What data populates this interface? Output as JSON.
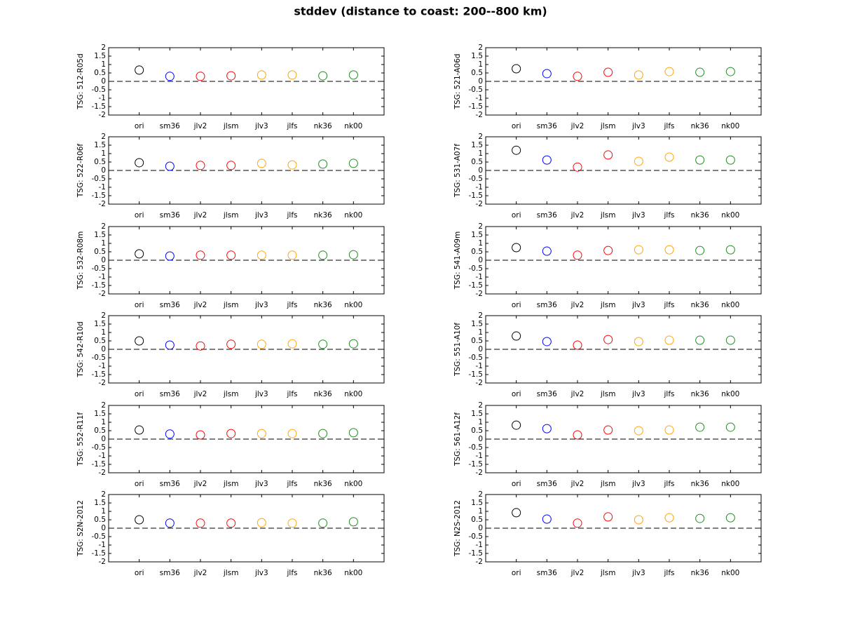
{
  "title": "stddev (distance to coast: 200--800 km)",
  "chart_data": [
    {
      "type": "scatter",
      "ylabel": "TSG: 512-R05d",
      "categories": [
        "ori",
        "sm36",
        "jlv2",
        "jlsm",
        "jlv3",
        "jlfs",
        "nk36",
        "nk00"
      ],
      "values": [
        0.67,
        0.3,
        0.3,
        0.33,
        0.38,
        0.38,
        0.33,
        0.38
      ],
      "colors": [
        "#000000",
        "#0000ff",
        "#ff0000",
        "#ff0000",
        "#ffa500",
        "#ffa500",
        "#228b22",
        "#228b22"
      ],
      "ylim": [
        -2,
        2
      ],
      "yticks": [
        -2,
        -1.5,
        -1,
        -0.5,
        0,
        0.5,
        1,
        1.5,
        2
      ],
      "hline": 0
    },
    {
      "type": "scatter",
      "ylabel": "TSG: 521-A06d",
      "categories": [
        "ori",
        "sm36",
        "jlv2",
        "jlsm",
        "jlv3",
        "jlfs",
        "nk36",
        "nk00"
      ],
      "values": [
        0.75,
        0.46,
        0.3,
        0.54,
        0.38,
        0.58,
        0.54,
        0.58
      ],
      "colors": [
        "#000000",
        "#0000ff",
        "#ff0000",
        "#ff0000",
        "#ffa500",
        "#ffa500",
        "#228b22",
        "#228b22"
      ],
      "ylim": [
        -2,
        2
      ],
      "yticks": [
        -2,
        -1.5,
        -1,
        -0.5,
        0,
        0.5,
        1,
        1.5,
        2
      ],
      "hline": 0
    },
    {
      "type": "scatter",
      "ylabel": "TSG: 522-R06f",
      "categories": [
        "ori",
        "sm36",
        "jlv2",
        "jlsm",
        "jlv3",
        "jlfs",
        "nk36",
        "nk00"
      ],
      "values": [
        0.46,
        0.25,
        0.3,
        0.3,
        0.42,
        0.33,
        0.38,
        0.42
      ],
      "colors": [
        "#000000",
        "#0000ff",
        "#ff0000",
        "#ff0000",
        "#ffa500",
        "#ffa500",
        "#228b22",
        "#228b22"
      ],
      "ylim": [
        -2,
        2
      ],
      "yticks": [
        -2,
        -1.5,
        -1,
        -0.5,
        0,
        0.5,
        1,
        1.5,
        2
      ],
      "hline": 0
    },
    {
      "type": "scatter",
      "ylabel": "TSG: 531-A07f",
      "categories": [
        "ori",
        "sm36",
        "jlv2",
        "jlsm",
        "jlv3",
        "jlfs",
        "nk36",
        "nk00"
      ],
      "values": [
        1.2,
        0.62,
        0.2,
        0.92,
        0.54,
        0.79,
        0.62,
        0.62
      ],
      "colors": [
        "#000000",
        "#0000ff",
        "#ff0000",
        "#ff0000",
        "#ffa500",
        "#ffa500",
        "#228b22",
        "#228b22"
      ],
      "ylim": [
        -2,
        2
      ],
      "yticks": [
        -2,
        -1.5,
        -1,
        -0.5,
        0,
        0.5,
        1,
        1.5,
        2
      ],
      "hline": 0
    },
    {
      "type": "scatter",
      "ylabel": "TSG: 532-R08m",
      "categories": [
        "ori",
        "sm36",
        "jlv2",
        "jlsm",
        "jlv3",
        "jlfs",
        "nk36",
        "nk00"
      ],
      "values": [
        0.38,
        0.25,
        0.3,
        0.3,
        0.3,
        0.3,
        0.3,
        0.33
      ],
      "colors": [
        "#000000",
        "#0000ff",
        "#ff0000",
        "#ff0000",
        "#ffa500",
        "#ffa500",
        "#228b22",
        "#228b22"
      ],
      "ylim": [
        -2,
        2
      ],
      "yticks": [
        -2,
        -1.5,
        -1,
        -0.5,
        0,
        0.5,
        1,
        1.5,
        2
      ],
      "hline": 0
    },
    {
      "type": "scatter",
      "ylabel": "TSG: 541-A09m",
      "categories": [
        "ori",
        "sm36",
        "jlv2",
        "jlsm",
        "jlv3",
        "jlfs",
        "nk36",
        "nk00"
      ],
      "values": [
        0.75,
        0.54,
        0.3,
        0.58,
        0.62,
        0.62,
        0.58,
        0.62
      ],
      "colors": [
        "#000000",
        "#0000ff",
        "#ff0000",
        "#ff0000",
        "#ffa500",
        "#ffa500",
        "#228b22",
        "#228b22"
      ],
      "ylim": [
        -2,
        2
      ],
      "yticks": [
        -2,
        -1.5,
        -1,
        -0.5,
        0,
        0.5,
        1,
        1.5,
        2
      ],
      "hline": 0
    },
    {
      "type": "scatter",
      "ylabel": "TSG: 542-R10d",
      "categories": [
        "ori",
        "sm36",
        "jlv2",
        "jlsm",
        "jlv3",
        "jlfs",
        "nk36",
        "nk00"
      ],
      "values": [
        0.5,
        0.25,
        0.2,
        0.3,
        0.3,
        0.33,
        0.3,
        0.33
      ],
      "colors": [
        "#000000",
        "#0000ff",
        "#ff0000",
        "#ff0000",
        "#ffa500",
        "#ffa500",
        "#228b22",
        "#228b22"
      ],
      "ylim": [
        -2,
        2
      ],
      "yticks": [
        -2,
        -1.5,
        -1,
        -0.5,
        0,
        0.5,
        1,
        1.5,
        2
      ],
      "hline": 0
    },
    {
      "type": "scatter",
      "ylabel": "TSG: 551-A10f",
      "categories": [
        "ori",
        "sm36",
        "jlv2",
        "jlsm",
        "jlv3",
        "jlfs",
        "nk36",
        "nk00"
      ],
      "values": [
        0.79,
        0.46,
        0.25,
        0.58,
        0.46,
        0.54,
        0.54,
        0.54
      ],
      "colors": [
        "#000000",
        "#0000ff",
        "#ff0000",
        "#ff0000",
        "#ffa500",
        "#ffa500",
        "#228b22",
        "#228b22"
      ],
      "ylim": [
        -2,
        2
      ],
      "yticks": [
        -2,
        -1.5,
        -1,
        -0.5,
        0,
        0.5,
        1,
        1.5,
        2
      ],
      "hline": 0
    },
    {
      "type": "scatter",
      "ylabel": "TSG: 552-R11f",
      "categories": [
        "ori",
        "sm36",
        "jlv2",
        "jlsm",
        "jlv3",
        "jlfs",
        "nk36",
        "nk00"
      ],
      "values": [
        0.54,
        0.3,
        0.25,
        0.33,
        0.33,
        0.33,
        0.33,
        0.38
      ],
      "colors": [
        "#000000",
        "#0000ff",
        "#ff0000",
        "#ff0000",
        "#ffa500",
        "#ffa500",
        "#228b22",
        "#228b22"
      ],
      "ylim": [
        -2,
        2
      ],
      "yticks": [
        -2,
        -1.5,
        -1,
        -0.5,
        0,
        0.5,
        1,
        1.5,
        2
      ],
      "hline": 0
    },
    {
      "type": "scatter",
      "ylabel": "TSG: 561-A12f",
      "categories": [
        "ori",
        "sm36",
        "jlv2",
        "jlsm",
        "jlv3",
        "jlfs",
        "nk36",
        "nk00"
      ],
      "values": [
        0.83,
        0.62,
        0.25,
        0.54,
        0.5,
        0.54,
        0.71,
        0.71
      ],
      "colors": [
        "#000000",
        "#0000ff",
        "#ff0000",
        "#ff0000",
        "#ffa500",
        "#ffa500",
        "#228b22",
        "#228b22"
      ],
      "ylim": [
        -2,
        2
      ],
      "yticks": [
        -2,
        -1.5,
        -1,
        -0.5,
        0,
        0.5,
        1,
        1.5,
        2
      ],
      "hline": 0
    },
    {
      "type": "scatter",
      "ylabel": "TSG: S2N-2012",
      "categories": [
        "ori",
        "sm36",
        "jlv2",
        "jlsm",
        "jlv3",
        "jlfs",
        "nk36",
        "nk00"
      ],
      "values": [
        0.5,
        0.3,
        0.3,
        0.3,
        0.33,
        0.3,
        0.3,
        0.38
      ],
      "colors": [
        "#000000",
        "#0000ff",
        "#ff0000",
        "#ff0000",
        "#ffa500",
        "#ffa500",
        "#228b22",
        "#228b22"
      ],
      "ylim": [
        -2,
        2
      ],
      "yticks": [
        -2,
        -1.5,
        -1,
        -0.5,
        0,
        0.5,
        1,
        1.5,
        2
      ],
      "hline": 0
    },
    {
      "type": "scatter",
      "ylabel": "TSG: N2S-2012",
      "categories": [
        "ori",
        "sm36",
        "jlv2",
        "jlsm",
        "jlv3",
        "jlfs",
        "nk36",
        "nk00"
      ],
      "values": [
        0.92,
        0.54,
        0.3,
        0.67,
        0.5,
        0.62,
        0.58,
        0.62
      ],
      "colors": [
        "#000000",
        "#0000ff",
        "#ff0000",
        "#ff0000",
        "#ffa500",
        "#ffa500",
        "#228b22",
        "#228b22"
      ],
      "ylim": [
        -2,
        2
      ],
      "yticks": [
        -2,
        -1.5,
        -1,
        -0.5,
        0,
        0.5,
        1,
        1.5,
        2
      ],
      "hline": 0
    }
  ]
}
